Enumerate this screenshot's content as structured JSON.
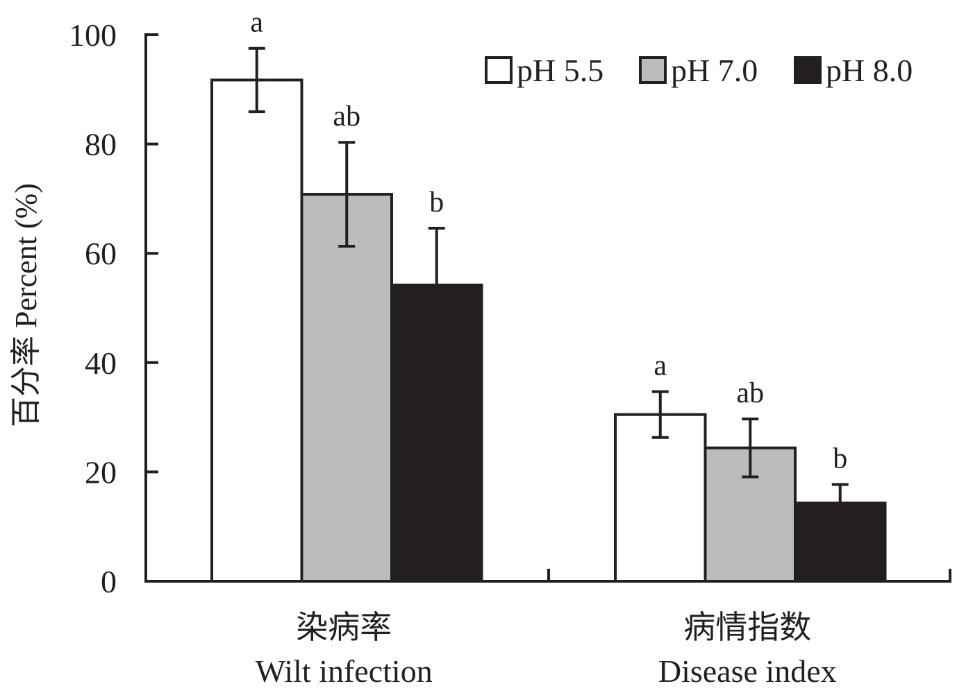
{
  "chart_data": {
    "type": "bar",
    "ylabel": "百分率 Percent (%)",
    "ylim": [
      0,
      100
    ],
    "yticks": [
      0,
      20,
      40,
      60,
      80,
      100
    ],
    "categories": [
      {
        "cn": "染病率",
        "en": "Wilt infection"
      },
      {
        "cn": "病情指数",
        "en": "Disease index"
      }
    ],
    "series": [
      {
        "name": "pH 5.5",
        "color": "#ffffff",
        "values": [
          91.7,
          30.5
        ],
        "errors": [
          5.8,
          4.2
        ],
        "letters": [
          "a",
          "a"
        ]
      },
      {
        "name": "pH 7.0",
        "color": "#bcbcbc",
        "values": [
          70.8,
          24.4
        ],
        "errors": [
          9.5,
          5.3
        ],
        "letters": [
          "ab",
          "ab"
        ]
      },
      {
        "name": "pH 8.0",
        "color": "#231f20",
        "values": [
          54.2,
          14.3
        ],
        "errors": [
          10.4,
          3.4
        ],
        "letters": [
          "b",
          "b"
        ]
      }
    ],
    "legend_position": "top-right",
    "grid": false
  }
}
